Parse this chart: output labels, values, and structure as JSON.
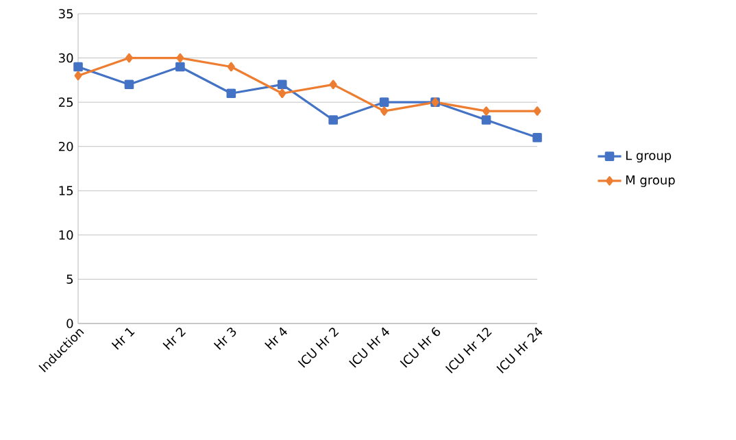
{
  "chart_data": {
    "type": "line",
    "categories": [
      "Induction",
      "Hr 1",
      "Hr 2",
      "Hr 3",
      "Hr 4",
      "ICU Hr 2",
      "ICU Hr 4",
      "ICU Hr 6",
      "ICU Hr 12",
      "ICU Hr 24"
    ],
    "series": [
      {
        "name": "L group",
        "color": "#4472c4",
        "marker": "square",
        "values": [
          29,
          27,
          29,
          26,
          27,
          23,
          25,
          25,
          23,
          21
        ]
      },
      {
        "name": "M group",
        "color": "#ed7d31",
        "marker": "diamond",
        "values": [
          28,
          30,
          30,
          29,
          26,
          27,
          24,
          25,
          24,
          24
        ]
      }
    ],
    "ylim": [
      0,
      35
    ],
    "yticks": [
      0,
      5,
      10,
      15,
      20,
      25,
      30,
      35
    ],
    "grid": "y",
    "legend": "right"
  }
}
